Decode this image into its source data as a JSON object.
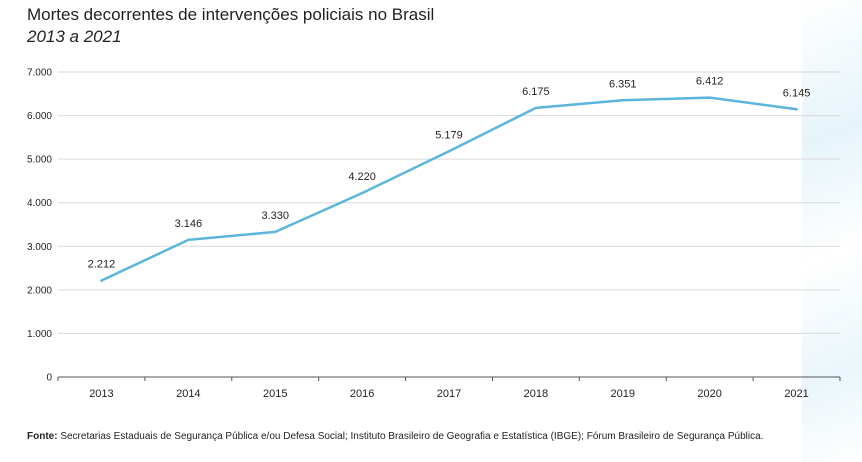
{
  "chart_data": {
    "type": "line",
    "title": "Mortes decorrentes de intervenções policiais no Brasil",
    "subtitle": "2013 a 2021",
    "categories": [
      "2013",
      "2014",
      "2015",
      "2016",
      "2017",
      "2018",
      "2019",
      "2020",
      "2021"
    ],
    "series": [
      {
        "name": "Mortes decorrentes de intervenções policiais",
        "values": [
          2212,
          3146,
          3330,
          4220,
          5179,
          6175,
          6351,
          6412,
          6145
        ],
        "labels": [
          "2.212",
          "3.146",
          "3.330",
          "4.220",
          "5.179",
          "6.175",
          "6.351",
          "6.412",
          "6.145"
        ]
      }
    ],
    "yticks": [
      0,
      1000,
      2000,
      3000,
      4000,
      5000,
      6000,
      7000
    ],
    "ytick_labels": [
      "0",
      "1.000",
      "2.000",
      "3.000",
      "4.000",
      "5.000",
      "6.000",
      "7.000"
    ],
    "ylim": [
      0,
      7000
    ],
    "grid": true,
    "line_color": "#5bb5dc",
    "grid_color": "#d9d9d9",
    "xlabel": "",
    "ylabel": ""
  },
  "source": {
    "label": "Fonte:",
    "text": " Secretarias Estaduais de Segurança Pública e/ou Defesa Social; Instituto Brasileiro de Geografia e Estatística (IBGE); Fórum Brasileiro de Segurança Pública."
  }
}
